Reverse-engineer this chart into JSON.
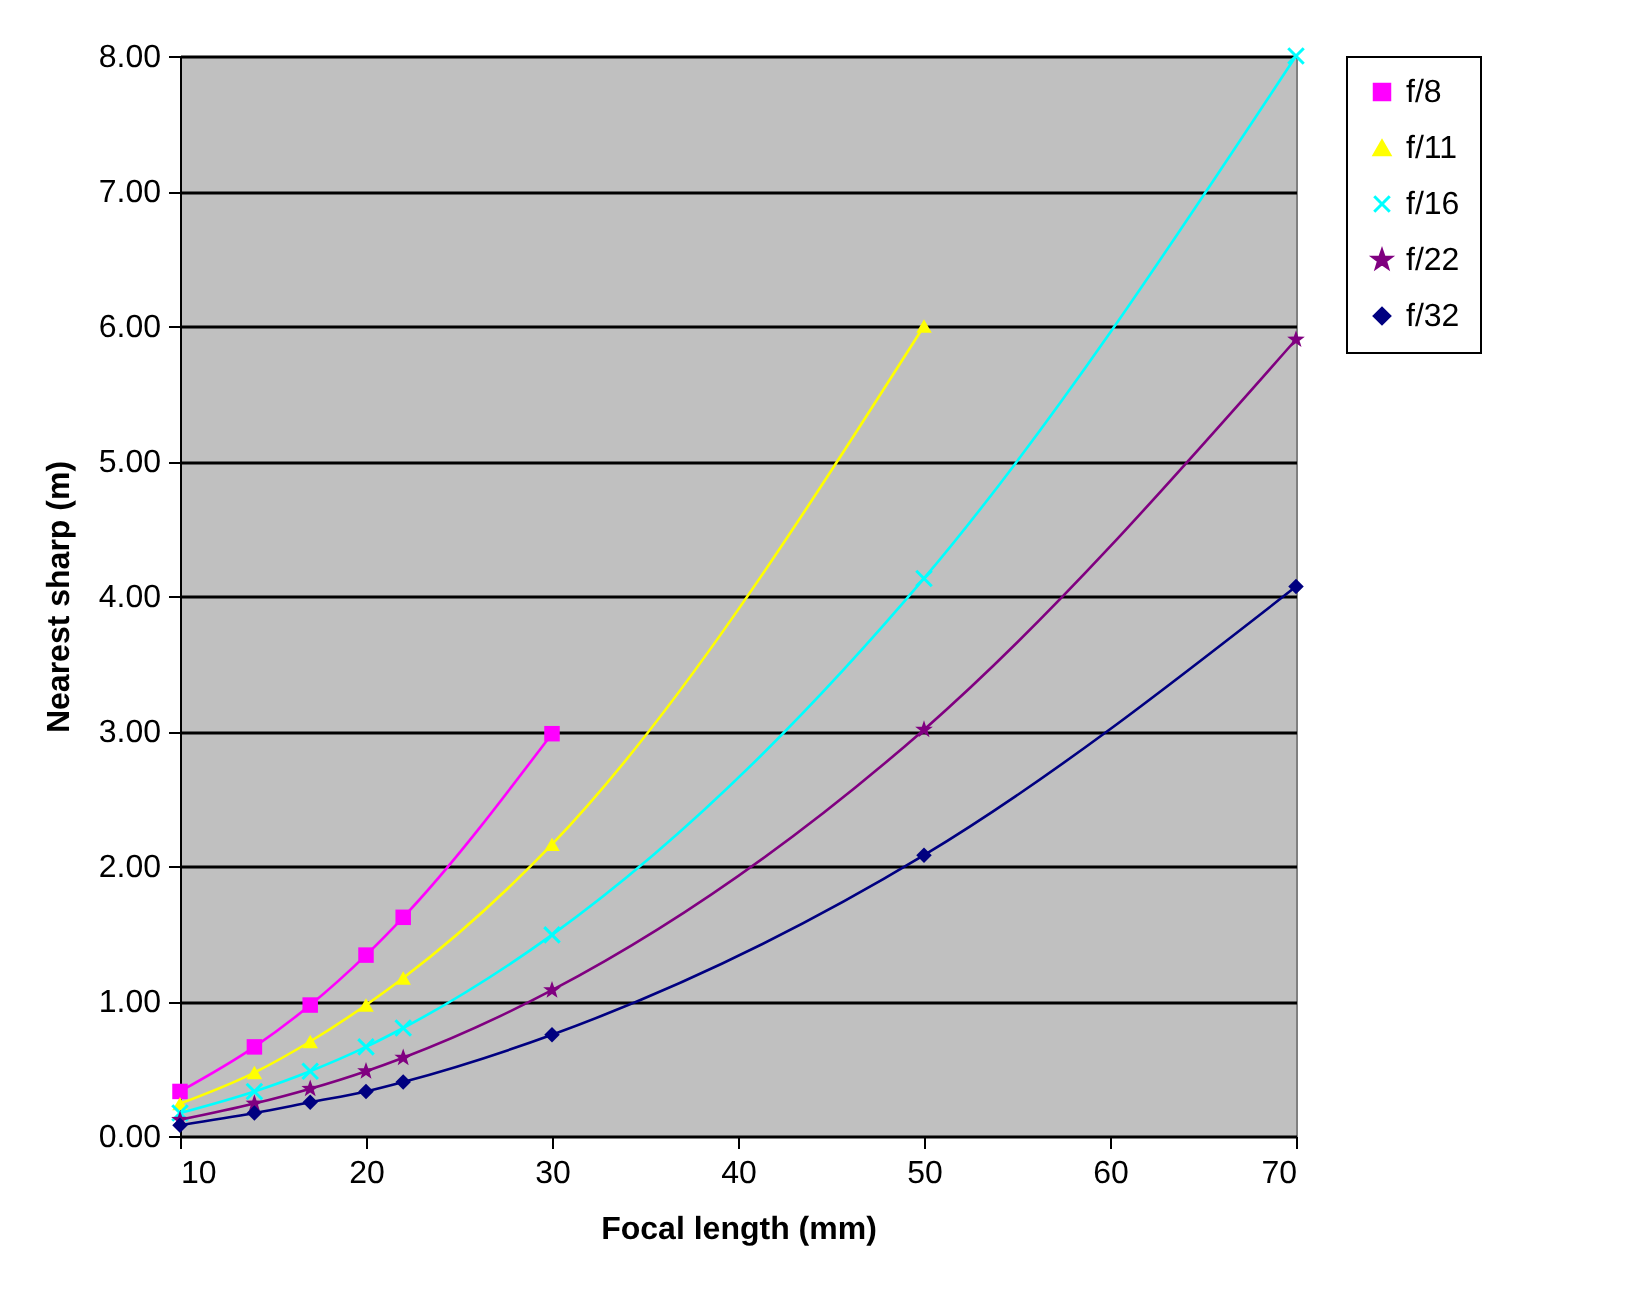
{
  "chart_data": {
    "type": "line",
    "xlabel": "Focal length (mm)",
    "ylabel": "Nearest sharp (m)",
    "x": [
      10,
      14,
      17,
      20,
      22,
      30,
      50,
      70
    ],
    "xlim": [
      10,
      70
    ],
    "xticks": [
      10,
      20,
      30,
      40,
      50,
      60,
      70
    ],
    "ylim": [
      0,
      8
    ],
    "yticks": [
      {
        "value": 0,
        "label": "0.00"
      },
      {
        "value": 1,
        "label": "1.00"
      },
      {
        "value": 2,
        "label": "2.00"
      },
      {
        "value": 3,
        "label": "3.00"
      },
      {
        "value": 4,
        "label": "4.00"
      },
      {
        "value": 5,
        "label": "5.00"
      },
      {
        "value": 6,
        "label": "6.00"
      },
      {
        "value": 7,
        "label": "7.00"
      },
      {
        "value": 8,
        "label": "8.00"
      }
    ],
    "grid": "y",
    "legend": "right",
    "series": [
      {
        "name": "f/8",
        "color": "#ff00ff",
        "marker": "square",
        "values": [
          0.33,
          0.66,
          0.97,
          1.34,
          1.62,
          2.98,
          null,
          null
        ]
      },
      {
        "name": "f/11",
        "color": "#ffff00",
        "marker": "triangle",
        "values": [
          0.24,
          0.47,
          0.7,
          0.97,
          1.17,
          2.16,
          6.0,
          null
        ]
      },
      {
        "name": "f/16",
        "color": "#00ffff",
        "marker": "cross",
        "values": [
          0.17,
          0.33,
          0.48,
          0.66,
          0.8,
          1.49,
          4.13,
          8.0
        ]
      },
      {
        "name": "f/22",
        "color": "#800080",
        "marker": "star",
        "values": [
          0.12,
          0.24,
          0.35,
          0.48,
          0.58,
          1.08,
          3.01,
          5.9
        ]
      },
      {
        "name": "f/32",
        "color": "#000080",
        "marker": "diamond",
        "values": [
          0.08,
          0.17,
          0.25,
          0.33,
          0.4,
          0.75,
          2.08,
          4.07
        ]
      }
    ]
  }
}
